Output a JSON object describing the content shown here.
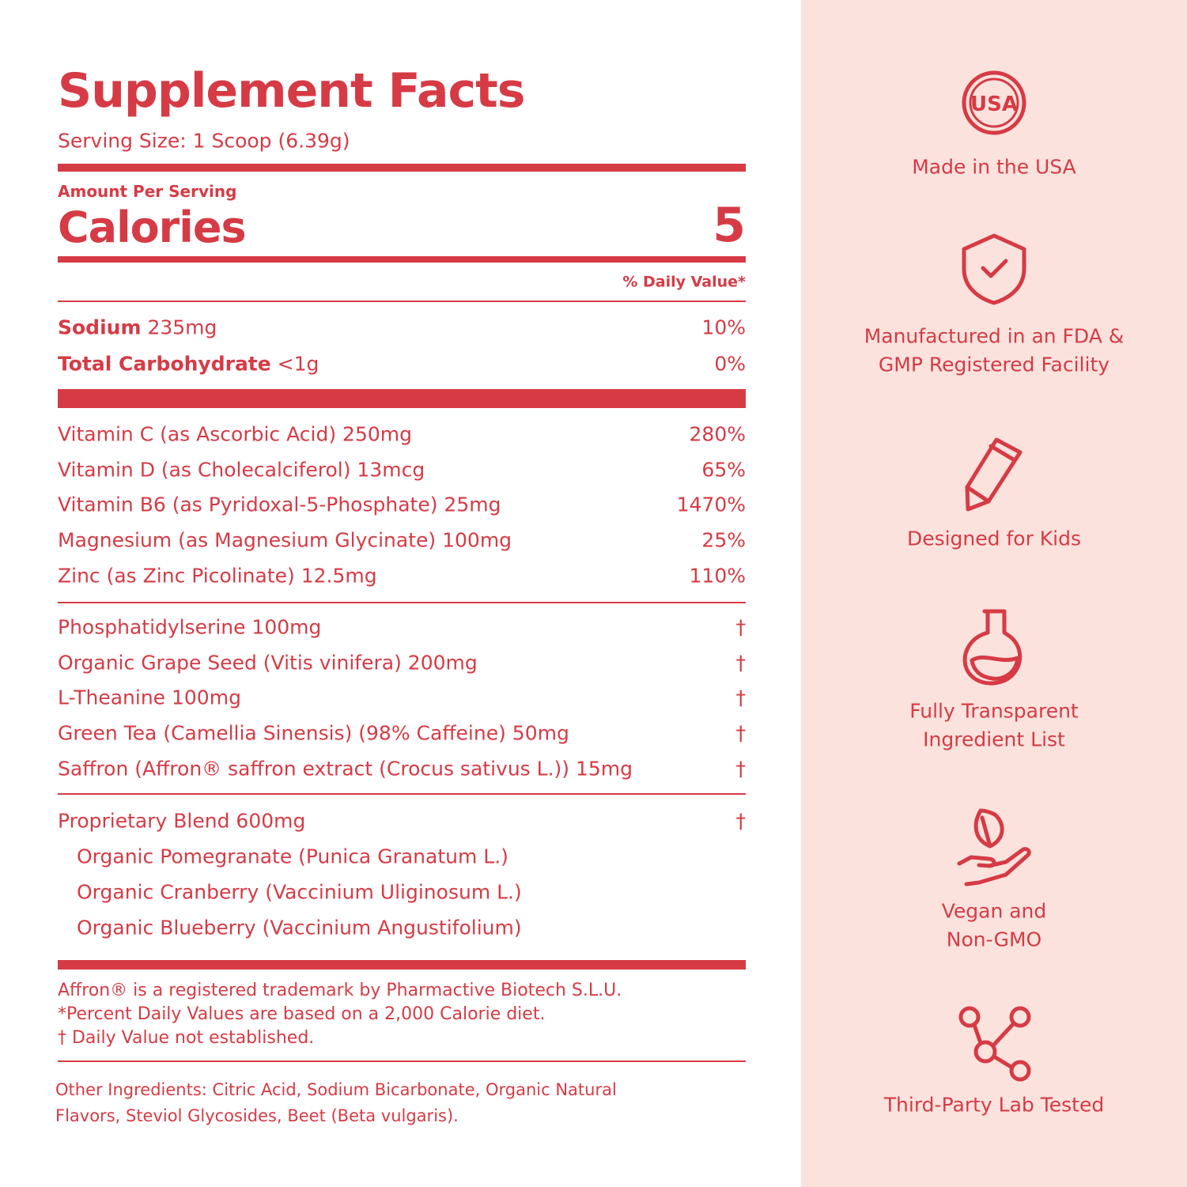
{
  "title": "Supplement Facts",
  "serving": "Serving Size: 1 Scoop (6.39g)",
  "amount_per_serving": "Amount Per Serving",
  "calories": {
    "label": "Calories",
    "value": "5"
  },
  "daily_value_header": "% Daily Value*",
  "macros": [
    {
      "name": "Sodium",
      "amount": "235mg",
      "dv": "10%"
    },
    {
      "name": "Total Carbohydrate",
      "amount": "<1g",
      "dv": "0%"
    }
  ],
  "vitamins": [
    {
      "label": "Vitamin C (as Ascorbic Acid) 250mg",
      "dv": "280%"
    },
    {
      "label": "Vitamin D (as Cholecalciferol) 13mcg",
      "dv": "65%"
    },
    {
      "label": "Vitamin B6 (as Pyridoxal-5-Phosphate) 25mg",
      "dv": "1470%"
    },
    {
      "label": "Magnesium (as Magnesium Glycinate) 100mg",
      "dv": "25%"
    },
    {
      "label": "Zinc (as Zinc Picolinate) 12.5mg",
      "dv": "110%"
    }
  ],
  "others": [
    {
      "label": "Phosphatidylserine 100mg",
      "dv": "†"
    },
    {
      "label": "Organic Grape Seed (Vitis vinifera) 200mg",
      "dv": "†"
    },
    {
      "label": "L-Theanine 100mg",
      "dv": "†"
    },
    {
      "label": "Green Tea (Camellia Sinensis) (98% Caffeine) 50mg",
      "dv": "†"
    },
    {
      "label": "Saffron (Affron® saffron extract (Crocus sativus L.)) 15mg",
      "dv": "†"
    }
  ],
  "blend": {
    "label": "Proprietary Blend 600mg",
    "dv": "†",
    "items": [
      "Organic Pomegranate (Punica Granatum L.)",
      "Organic Cranberry (Vaccinium Uliginosum L.)",
      "Organic Blueberry (Vaccinium Angustifolium)"
    ]
  },
  "footnotes": [
    "Affron® is a registered trademark by Pharmactive Biotech S.L.U.",
    "*Percent Daily Values are based on a 2,000 Calorie diet.",
    "† Daily Value not established."
  ],
  "other_ingredients": "Other Ingredients: Citric Acid, Sodium Bicarbonate, Organic Natural Flavors, Steviol Glycosides, Beet (Beta vulgaris).",
  "usa_icon_text": "USA",
  "badges": [
    {
      "lines": [
        "Made in the USA"
      ]
    },
    {
      "lines": [
        "Manufactured in an FDA &",
        "GMP Registered Facility"
      ]
    },
    {
      "lines": [
        "Designed for Kids"
      ]
    },
    {
      "lines": [
        "Fully Transparent",
        "Ingredient List"
      ]
    },
    {
      "lines": [
        "Vegan and",
        "Non-GMO"
      ]
    },
    {
      "lines": [
        "Third-Party Lab Tested"
      ]
    }
  ]
}
